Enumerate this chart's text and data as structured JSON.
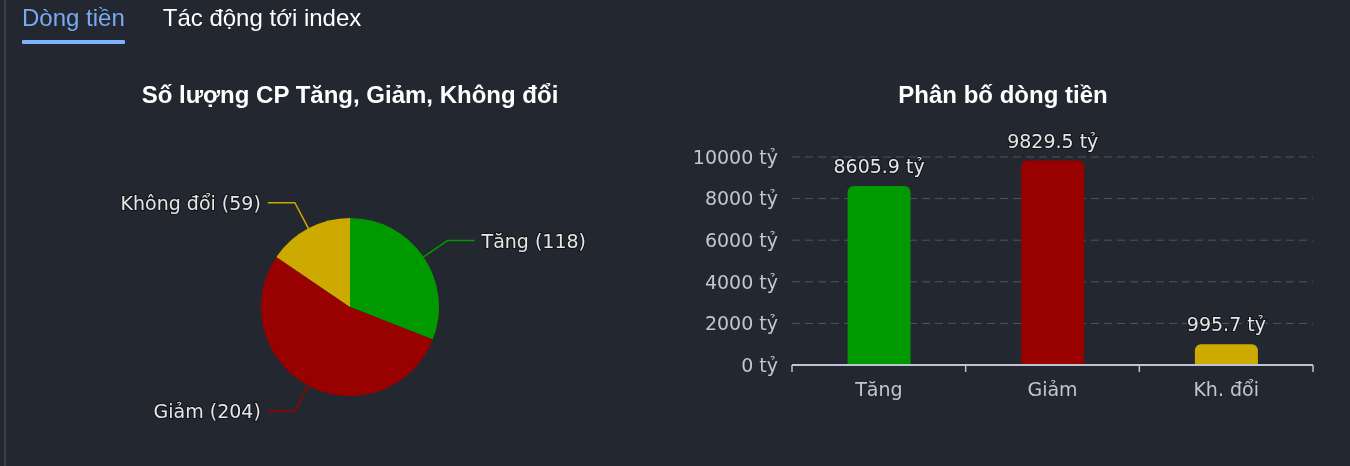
{
  "chart_data": [
    {
      "type": "other",
      "annotations": [
        "Dòng tiền",
        "Tác động tới index"
      ]
    },
    {
      "type": "pie",
      "title": "Số lượng CP Tăng, Giảm, Không đổi",
      "categories": [
        "Tăng (118)",
        "Giảm (204)",
        "Không đổi (59)"
      ],
      "values": [
        118,
        204,
        59
      ],
      "colors": [
        "#009900",
        "#990000",
        "#ccaa00"
      ]
    },
    {
      "type": "bar",
      "title": "Phân bố dòng tiền",
      "categories": [
        "Tăng",
        "Giảm",
        "Kh. đổi"
      ],
      "values": [
        8605.9,
        9829.5,
        995.7
      ],
      "colors": [
        "#009900",
        "#990000",
        "#ccaa00"
      ],
      "value_labels": [
        "8605.9 tỷ",
        "9829.5 tỷ",
        "995.7 tỷ"
      ],
      "ylim": [
        0,
        10000
      ],
      "yticks": [
        {
          "value": 0,
          "label": "0 tỷ"
        },
        {
          "value": 2000,
          "label": "2000 tỷ"
        },
        {
          "value": 4000,
          "label": "4000 tỷ"
        },
        {
          "value": 6000,
          "label": "6000 tỷ"
        },
        {
          "value": 8000,
          "label": "8000 tỷ"
        },
        {
          "value": 10000,
          "label": "10000 tỷ"
        }
      ],
      "grid": "y"
    }
  ]
}
